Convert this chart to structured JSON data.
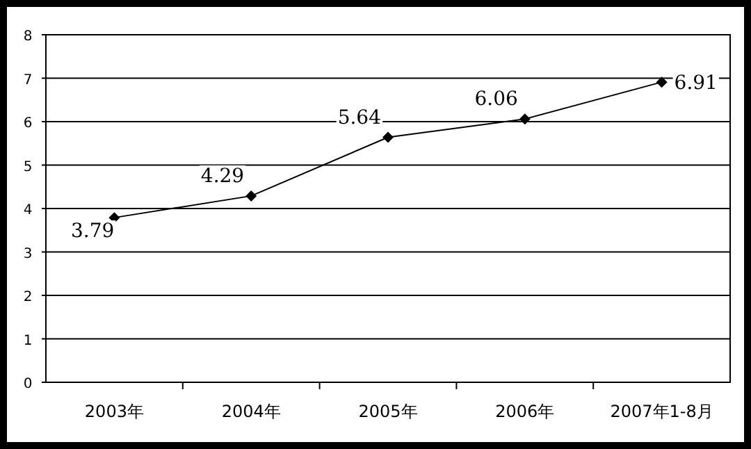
{
  "chart_data": {
    "type": "line",
    "categories": [
      "2003年",
      "2004年",
      "2005年",
      "2006年",
      "2007年1-8月"
    ],
    "series": [
      {
        "color": "#000000",
        "values": [
          3.79,
          4.29,
          5.64,
          6.06,
          6.91
        ]
      }
    ],
    "ylim": [
      0,
      8
    ],
    "yticks": [
      0,
      1,
      2,
      3,
      4,
      5,
      6,
      7,
      8
    ],
    "grid": "y",
    "marker": "diamond",
    "line_style": "solid",
    "data_labels": true
  }
}
